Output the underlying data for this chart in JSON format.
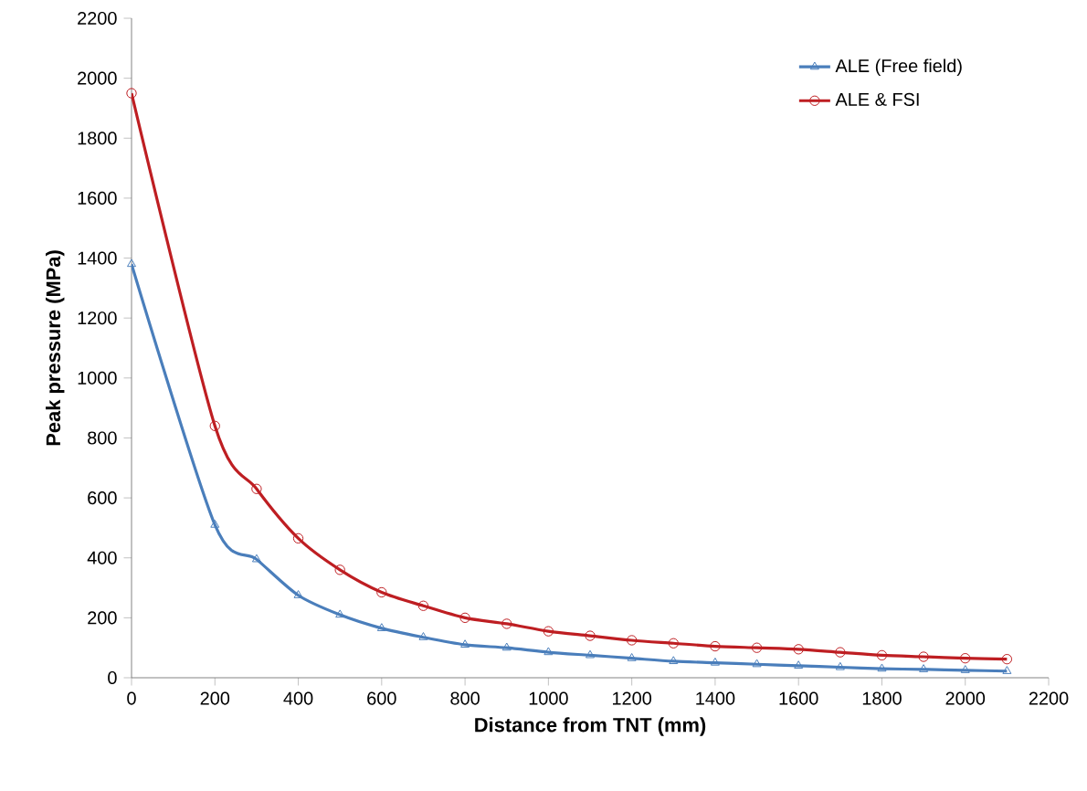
{
  "chart_data": {
    "type": "line",
    "xlabel": "Distance from TNT (mm)",
    "ylabel": "Peak pressure (MPa)",
    "x": [
      0,
      200,
      300,
      400,
      500,
      600,
      700,
      800,
      900,
      1000,
      1100,
      1200,
      1300,
      1400,
      1500,
      1600,
      1700,
      1800,
      1900,
      2000,
      2100
    ],
    "series": [
      {
        "name": "ALE (Free field)",
        "color": "#4a7ebb",
        "marker": "triangle",
        "values": [
          1380,
          510,
          395,
          275,
          210,
          165,
          135,
          110,
          100,
          85,
          75,
          65,
          55,
          50,
          45,
          40,
          35,
          30,
          28,
          25,
          22
        ]
      },
      {
        "name": "ALE & FSI",
        "color": "#be1e22",
        "marker": "circle",
        "values": [
          1950,
          840,
          630,
          465,
          360,
          285,
          240,
          200,
          180,
          155,
          140,
          125,
          115,
          105,
          100,
          95,
          85,
          75,
          70,
          65,
          62
        ]
      }
    ],
    "xlim": [
      0,
      2200
    ],
    "ylim": [
      0,
      2200
    ],
    "xticks": [
      0,
      200,
      400,
      600,
      800,
      1000,
      1200,
      1400,
      1600,
      1800,
      2000,
      2200
    ],
    "yticks": [
      0,
      200,
      400,
      600,
      800,
      1000,
      1200,
      1400,
      1600,
      1800,
      2000,
      2200
    ],
    "grid": false,
    "legend": "top right"
  }
}
